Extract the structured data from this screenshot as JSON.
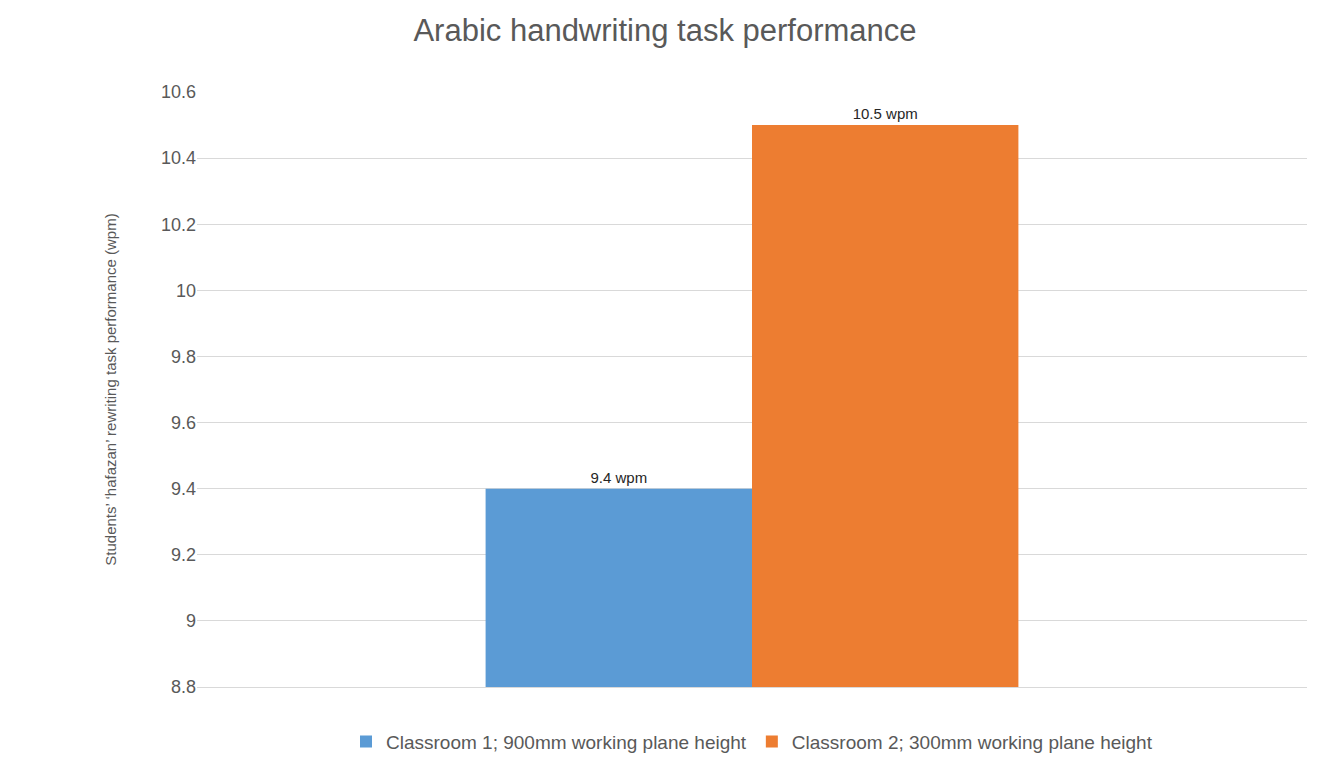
{
  "chart_data": {
    "type": "bar",
    "title": "Arabic handwriting task performance",
    "y_label": "Students’ ‘hafazan’ rewriting task performance (wpm)",
    "categories": [
      null
    ],
    "series": [
      {
        "name": "Classroom 1; 900mm working plane height",
        "color": "#5b9bd5",
        "values": [
          9.4
        ],
        "value_labels": [
          "9.4 wpm"
        ]
      },
      {
        "name": "Classroom 2; 300mm working plane height",
        "color": "#ed7d31",
        "values": [
          10.5
        ],
        "value_labels": [
          "10.5 wpm"
        ]
      }
    ],
    "ylim": [
      8.8,
      10.6
    ],
    "yticks": [
      8.8,
      9,
      9.2,
      9.4,
      9.6,
      9.8,
      10,
      10.2,
      10.4,
      10.6
    ],
    "grid": true,
    "legend": "bottom",
    "data_labels": true,
    "tick_labels": "y"
  }
}
